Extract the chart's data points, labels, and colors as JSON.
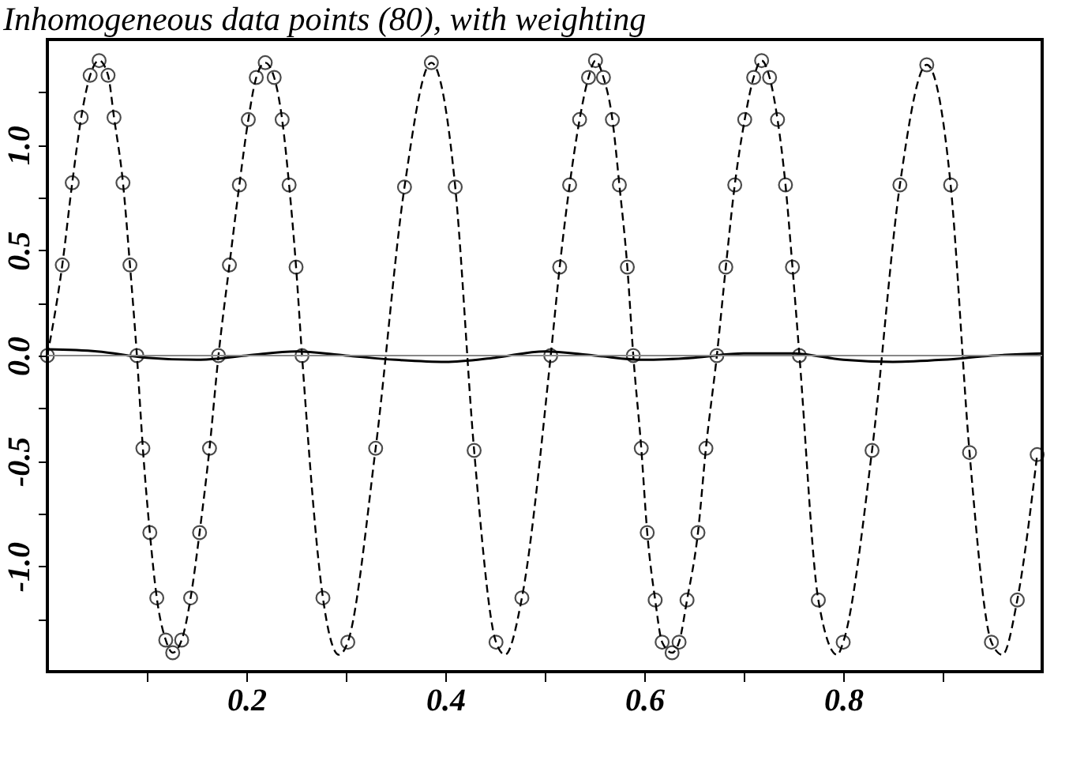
{
  "chart_data": {
    "type": "scatter",
    "title": "Inhomogeneous data points (80), with weighting",
    "xlim": [
      0,
      1
    ],
    "ylim": [
      -1.5,
      1.5
    ],
    "xticks": [
      {
        "value": 0.1,
        "label": null
      },
      0.2,
      {
        "value": 0.3,
        "label": null
      },
      0.4,
      {
        "value": 0.5,
        "label": null
      },
      0.6,
      {
        "value": 0.7,
        "label": null
      },
      0.8,
      {
        "value": 0.9,
        "label": null
      }
    ],
    "yticks": [
      {
        "value": -1.25,
        "label": null
      },
      {
        "value": -1.0,
        "label": "-1.0"
      },
      {
        "value": -0.75,
        "label": null
      },
      -0.5,
      {
        "value": -0.25,
        "label": null
      },
      {
        "value": 0.0,
        "label": "0.0"
      },
      {
        "value": 0.25,
        "label": null
      },
      0.5,
      {
        "value": 0.75,
        "label": null
      },
      {
        "value": 1.0,
        "label": "1.0"
      },
      {
        "value": 1.25,
        "label": null
      }
    ],
    "grid": false,
    "ref_lines": [
      {
        "axis": "y",
        "value": 0,
        "color": "#888888",
        "line_style": "solid"
      }
    ],
    "series": [
      {
        "type": "line",
        "color": "#000000",
        "marker": "none",
        "line_style": "dashed",
        "x": [
          0,
          0.015,
          0.025,
          0.034,
          0.043,
          0.052,
          0.061,
          0.067,
          0.076,
          0.083,
          0.09,
          0.096,
          0.103,
          0.11,
          0.119,
          0.126,
          0.135,
          0.144,
          0.153,
          0.163,
          0.172,
          0.183,
          0.193,
          0.202,
          0.21,
          0.219,
          0.228,
          0.236,
          0.243,
          0.25,
          0.256,
          0.277,
          0.293,
          0.302,
          0.33,
          0.359,
          0.386,
          0.41,
          0.429,
          0.451,
          0.46,
          0.477,
          0.506,
          0.515,
          0.525,
          0.535,
          0.544,
          0.551,
          0.559,
          0.568,
          0.575,
          0.583,
          0.589,
          0.597,
          0.603,
          0.611,
          0.618,
          0.628,
          0.635,
          0.643,
          0.654,
          0.662,
          0.673,
          0.682,
          0.691,
          0.701,
          0.71,
          0.718,
          0.726,
          0.734,
          0.742,
          0.749,
          0.756,
          0.775,
          0.794,
          0.8,
          0.829,
          0.857,
          0.884,
          0.908,
          0.927,
          0.949,
          0.96,
          0.975,
          0.995
        ],
        "values": [
          0,
          0.43,
          0.82,
          1.13,
          1.33,
          1.4,
          1.33,
          1.13,
          0.82,
          0.43,
          0,
          -0.44,
          -0.84,
          -1.15,
          -1.35,
          -1.41,
          -1.35,
          -1.15,
          -0.84,
          -0.44,
          0,
          0.43,
          0.81,
          1.12,
          1.32,
          1.39,
          1.32,
          1.12,
          0.81,
          0.42,
          0,
          -1.15,
          -1.42,
          -1.36,
          -0.44,
          0.8,
          1.39,
          0.8,
          -0.45,
          -1.36,
          -1.42,
          -1.15,
          0,
          0.42,
          0.81,
          1.12,
          1.32,
          1.4,
          1.32,
          1.12,
          0.81,
          0.42,
          0,
          -0.44,
          -0.84,
          -1.16,
          -1.36,
          -1.41,
          -1.36,
          -1.16,
          -0.84,
          -0.44,
          0,
          0.42,
          0.81,
          1.12,
          1.32,
          1.4,
          1.32,
          1.12,
          0.81,
          0.42,
          0,
          -1.16,
          -1.42,
          -1.36,
          -0.45,
          0.81,
          1.38,
          0.81,
          -0.46,
          -1.36,
          -1.42,
          -1.16,
          -0.47
        ]
      },
      {
        "type": "line",
        "color": "#000000",
        "marker": "none",
        "line_style": "solid",
        "x": [
          0,
          0.05,
          0.1,
          0.15,
          0.2,
          0.25,
          0.3,
          0.35,
          0.4,
          0.45,
          0.5,
          0.55,
          0.6,
          0.65,
          0.7,
          0.75,
          0.8,
          0.85,
          0.9,
          0.95,
          1.0
        ],
        "values": [
          0.03,
          0.02,
          -0.01,
          -0.02,
          0.0,
          0.02,
          0.0,
          -0.02,
          -0.03,
          -0.01,
          0.02,
          0.0,
          -0.02,
          -0.01,
          0.01,
          0.01,
          -0.02,
          -0.03,
          -0.02,
          0.0,
          0.01
        ]
      },
      {
        "color": "#000000",
        "marker": "circle",
        "x": [
          0,
          0.015,
          0.025,
          0.034,
          0.043,
          0.052,
          0.061,
          0.067,
          0.076,
          0.083,
          0.09,
          0.096,
          0.103,
          0.11,
          0.119,
          0.126,
          0.135,
          0.144,
          0.153,
          0.163,
          0.172,
          0.183,
          0.193,
          0.202,
          0.21,
          0.219,
          0.228,
          0.236,
          0.243,
          0.25,
          0.256,
          0.277,
          0.302,
          0.33,
          0.359,
          0.386,
          0.41,
          0.429,
          0.451,
          0.477,
          0.506,
          0.515,
          0.525,
          0.535,
          0.544,
          0.551,
          0.559,
          0.568,
          0.575,
          0.583,
          0.589,
          0.597,
          0.603,
          0.611,
          0.618,
          0.628,
          0.635,
          0.643,
          0.654,
          0.662,
          0.673,
          0.682,
          0.691,
          0.701,
          0.71,
          0.718,
          0.726,
          0.734,
          0.742,
          0.749,
          0.756,
          0.775,
          0.8,
          0.829,
          0.857,
          0.884,
          0.908,
          0.927,
          0.949,
          0.975,
          0.995
        ],
        "values": [
          0,
          0.43,
          0.82,
          1.13,
          1.33,
          1.4,
          1.33,
          1.13,
          0.82,
          0.43,
          0,
          -0.44,
          -0.84,
          -1.15,
          -1.35,
          -1.41,
          -1.35,
          -1.15,
          -0.84,
          -0.44,
          0,
          0.43,
          0.81,
          1.12,
          1.32,
          1.39,
          1.32,
          1.12,
          0.81,
          0.42,
          0,
          -1.15,
          -1.36,
          -0.44,
          0.8,
          1.39,
          0.8,
          -0.45,
          -1.36,
          -1.15,
          0,
          0.42,
          0.81,
          1.12,
          1.32,
          1.4,
          1.32,
          1.12,
          0.81,
          0.42,
          0,
          -0.44,
          -0.84,
          -1.16,
          -1.36,
          -1.41,
          -1.36,
          -1.16,
          -0.84,
          -0.44,
          0,
          0.42,
          0.81,
          1.12,
          1.32,
          1.4,
          1.32,
          1.12,
          0.81,
          0.42,
          0,
          -1.16,
          -1.36,
          -0.45,
          0.81,
          1.38,
          0.81,
          -0.46,
          -1.36,
          -1.16,
          -0.47
        ]
      }
    ]
  }
}
